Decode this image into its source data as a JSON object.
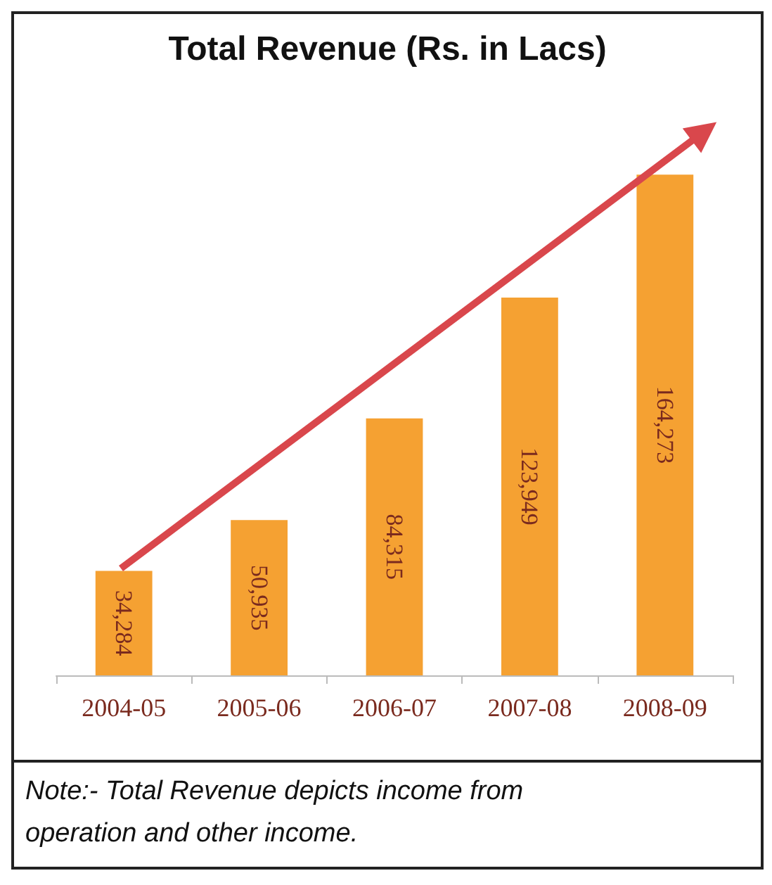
{
  "chart_data": {
    "type": "bar",
    "title": "Total Revenue (Rs. in Lacs)",
    "categories": [
      "2004-05",
      "2005-06",
      "2006-07",
      "2007-08",
      "2008-09"
    ],
    "values": [
      34284,
      50935,
      84315,
      123949,
      164273
    ],
    "value_labels": [
      "34,284",
      "50,935",
      "84,315",
      "123,949",
      "164,273"
    ],
    "color": "#f5a132",
    "grid": false,
    "annotations": [
      "Note:- Total Revenue depicts income from operation and other income."
    ]
  }
}
